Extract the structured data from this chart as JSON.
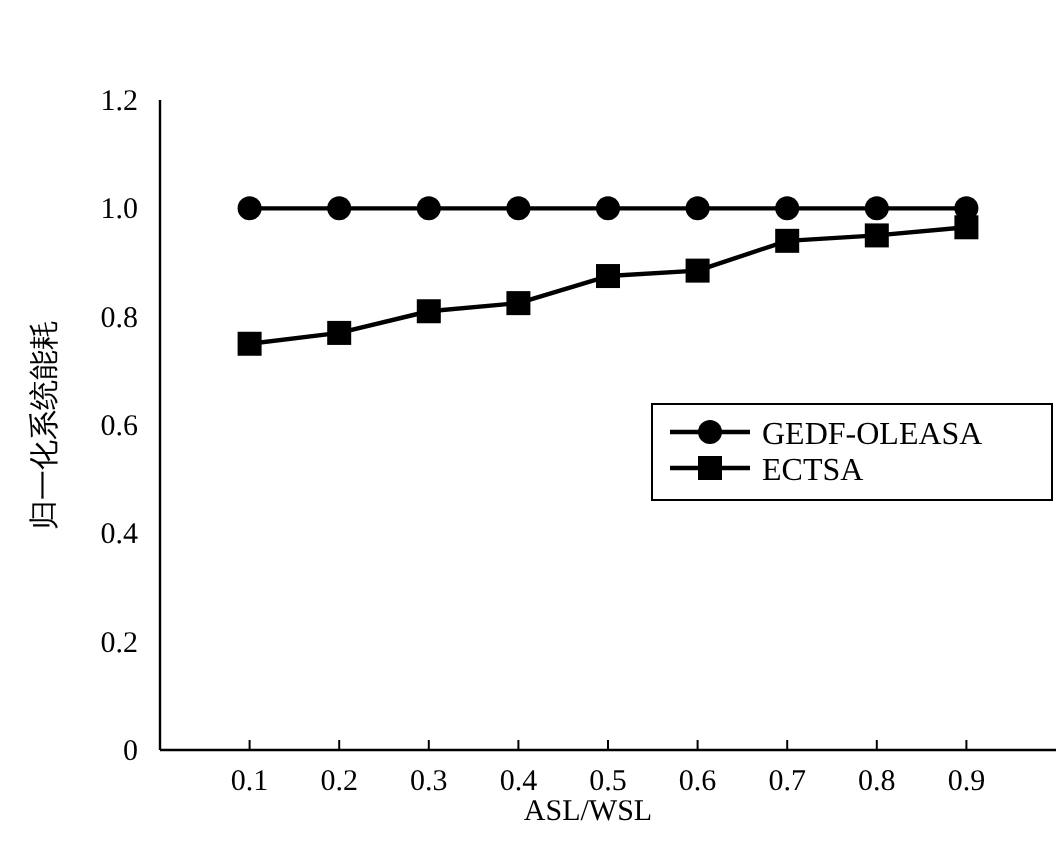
{
  "chart_data": {
    "type": "line",
    "xlabel": "ASL/WSL",
    "ylabel": "归一化系统能耗",
    "x": [
      0.1,
      0.2,
      0.3,
      0.4,
      0.5,
      0.6,
      0.7,
      0.8,
      0.9
    ],
    "series": [
      {
        "name": "GEDF-OLEASA",
        "color": "#000000",
        "marker": "circle",
        "values": [
          1.0,
          1.0,
          1.0,
          1.0,
          1.0,
          1.0,
          1.0,
          1.0,
          1.0
        ]
      },
      {
        "name": "ECTSA",
        "color": "#000000",
        "marker": "square",
        "values": [
          0.75,
          0.77,
          0.81,
          0.825,
          0.875,
          0.885,
          0.94,
          0.95,
          0.965
        ]
      }
    ],
    "xlim": [
      0,
      1
    ],
    "ylim": [
      0,
      1.2
    ],
    "xticks": [
      0.1,
      0.2,
      0.3,
      0.4,
      0.5,
      0.6,
      0.7,
      0.8,
      0.9
    ],
    "yticks": [
      0,
      0.2,
      0.4,
      0.6,
      0.8,
      {
        "value": 1,
        "label": "1.0"
      },
      1.2
    ],
    "legend": "right",
    "grid": false,
    "line_style": "solid"
  }
}
